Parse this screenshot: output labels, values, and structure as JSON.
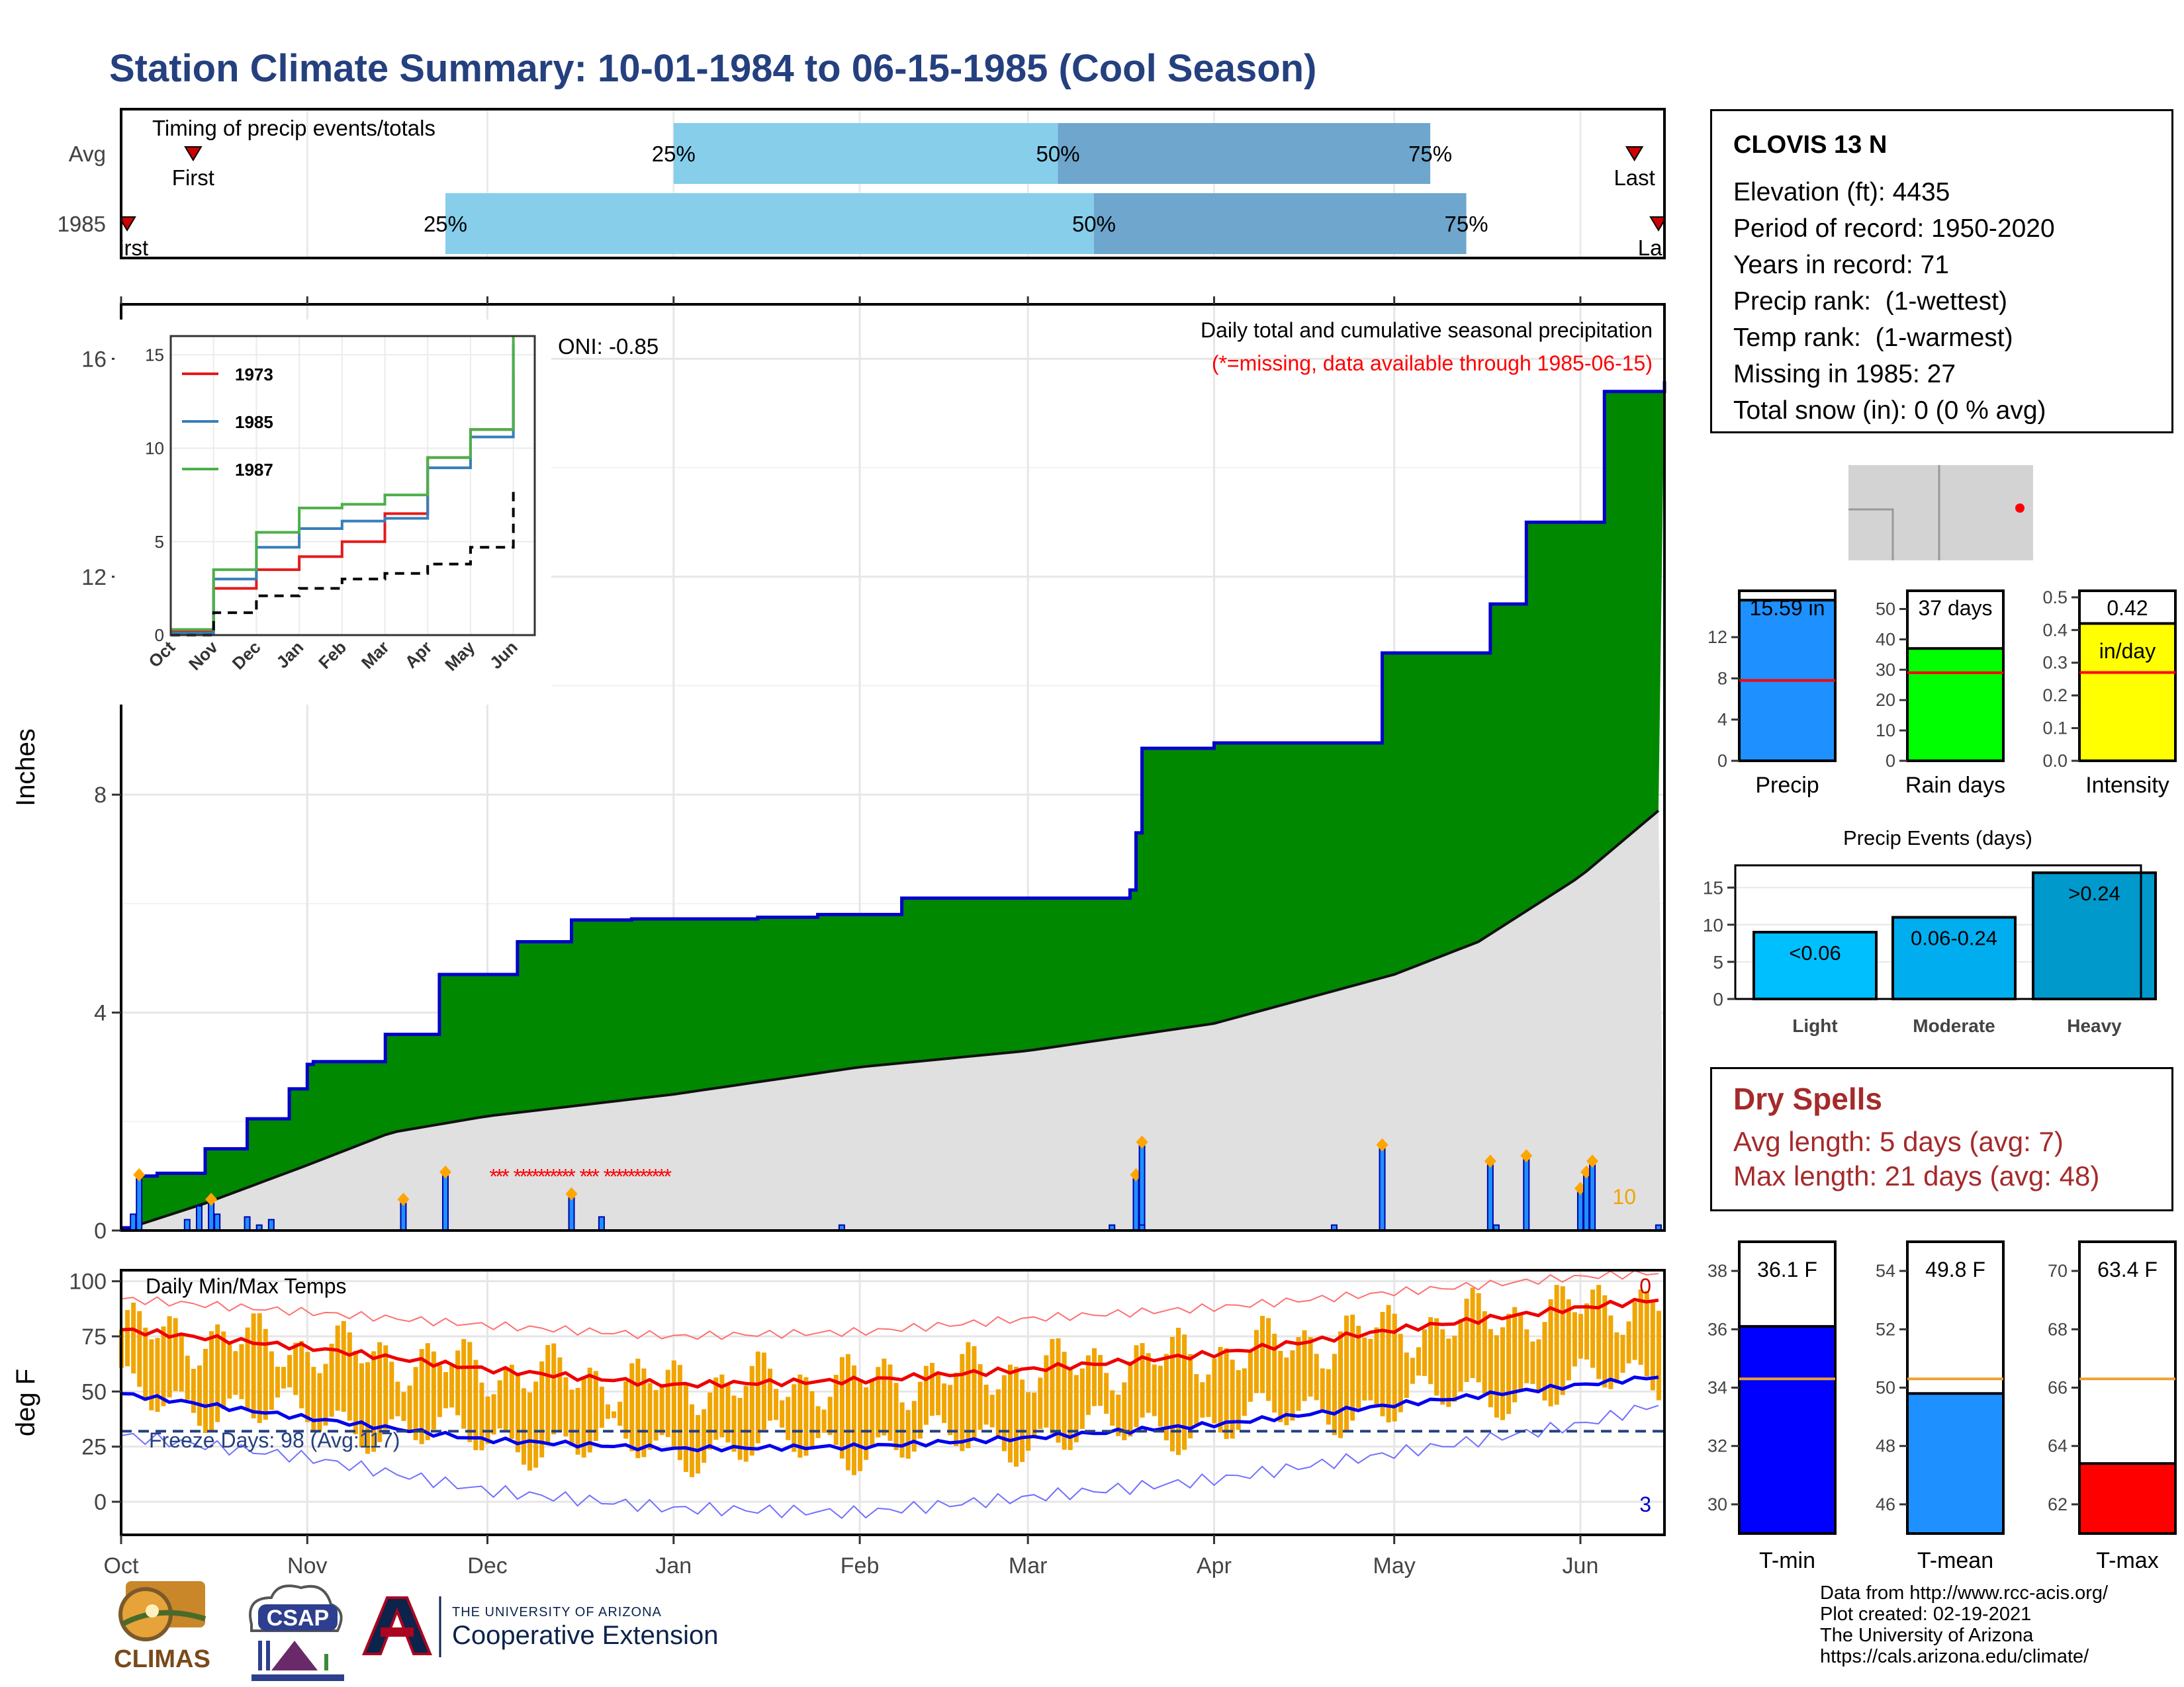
{
  "page": {
    "title": "Station Climate Summary: 10-01-1984 to 06-15-1985 (Cool Season)"
  },
  "colors": {
    "title": "#25407f",
    "wet_fill": "#008800",
    "avg_fill": "#e0e0e0",
    "cum_line": "#0000cc",
    "temp_bar": "#f0a500",
    "max_line": "#ee0000",
    "min_line": "#0000ee",
    "precip_bar": "#1e90ff",
    "raindays_bar": "#00ff00",
    "intensity_bar": "#ffff00",
    "events_bar": "#00a0e0",
    "tmin_bar": "#0000ff",
    "tmean_bar": "#1e90ff",
    "tmax_bar": "#ff0000",
    "dry_text": "#a52a2a",
    "missing": "#ff0000"
  },
  "timing": {
    "label": "Timing of precip events/totals",
    "rows": [
      {
        "name": "Avg",
        "q25": "25%",
        "q50": "50%",
        "q75": "75%",
        "first": "First",
        "last": "Last",
        "q25_date": "1985-01-01",
        "q50_date": "1985-03-06",
        "q75_date": "1985-05-07",
        "first_date": "1984-10-13",
        "last_date": "1985-06-10"
      },
      {
        "name": "1985",
        "q25": "25%",
        "q50": "50%",
        "q75": "75%",
        "first": "First",
        "last": "Last",
        "q25_date": "1984-11-24",
        "q50_date": "1985-03-12",
        "q75_date": "1985-05-13",
        "first_date": "1984-10-02",
        "last_date": "1985-06-14"
      }
    ]
  },
  "station": {
    "name": "CLOVIS 13 N",
    "elevation": "Elevation (ft): 4435",
    "period": "Period of record: 1950-2020",
    "years": "Years in record: 71",
    "precip_rank": "Precip rank:  (1-wettest)",
    "temp_rank": "Temp rank:  (1-warmest)",
    "missing": "Missing in 1985: 27",
    "snow": "Total snow (in): 0 (0 % avg)"
  },
  "main_panel": {
    "ylabel": "Inches",
    "title": "Daily total and cumulative seasonal precipitation",
    "subtitle": "(*=missing, data available through 1985-06-15)",
    "oni": "ONI: -0.85",
    "count_label": "10",
    "yticks": [
      "0",
      "4",
      "8",
      "12",
      "16"
    ],
    "months": [
      "Oct",
      "Nov",
      "Dec",
      "Jan",
      "Feb",
      "Mar",
      "Apr",
      "May",
      "Jun"
    ]
  },
  "inset": {
    "yticks": [
      "0",
      "5",
      "10",
      "15"
    ],
    "months": [
      "Oct",
      "Nov",
      "Dec",
      "Jan",
      "Feb",
      "Mar",
      "Apr",
      "May",
      "Jun"
    ],
    "legend": [
      {
        "name": "1973",
        "color": "#e41a1c"
      },
      {
        "name": "1985",
        "color": "#377eb8"
      },
      {
        "name": "1987",
        "color": "#4daf4a"
      }
    ]
  },
  "temp_panel": {
    "ylabel": "deg F",
    "label": "Daily Min/Max Temps",
    "freeze": "Freeze Days: 98 (Avg:117)",
    "count_top": "0",
    "count_bottom": "3",
    "yticks": [
      "0",
      "25",
      "50",
      "75",
      "100"
    ]
  },
  "summary_bars": {
    "precip": {
      "label": "Precip",
      "value_label": "15.59 in",
      "value": 15.59,
      "avg": 7.8,
      "ymax": 16.5,
      "yticks": [
        "0",
        "4",
        "8",
        "12"
      ]
    },
    "rain_days": {
      "label": "Rain days",
      "value_label": "37 days",
      "value": 37,
      "avg": 29,
      "ymax": 56,
      "yticks": [
        "0",
        "10",
        "20",
        "30",
        "40",
        "50"
      ]
    },
    "intensity": {
      "label": "Intensity",
      "value_label": "0.42",
      "unit_label": "in/day",
      "value": 0.42,
      "avg": 0.27,
      "ymax": 0.52,
      "yticks": [
        "0.0",
        "0.1",
        "0.2",
        "0.3",
        "0.4",
        "0.5"
      ]
    }
  },
  "events": {
    "title": "Precip Events (days)",
    "yticks": [
      "0",
      "5",
      "10",
      "15"
    ],
    "bars": [
      {
        "category": "Light",
        "label": "<0.06",
        "value": 9
      },
      {
        "category": "Moderate",
        "label": "0.06-0.24",
        "value": 11
      },
      {
        "category": "Heavy",
        "label": ">0.24",
        "value": 17
      }
    ]
  },
  "dry_spells": {
    "title": "Dry Spells",
    "avg": "Avg length: 5 days (avg: 7)",
    "max": "Max length: 21 days (avg: 48)"
  },
  "temp_bars": {
    "tmin": {
      "label": "T-min",
      "value_label": "36.1 F",
      "value": 36.1,
      "avg": 34.3,
      "ymin": 29,
      "ymax": 39,
      "yticks": [
        "30",
        "32",
        "34",
        "36",
        "38"
      ]
    },
    "tmean": {
      "label": "T-mean",
      "value_label": "49.8 F",
      "value": 49.8,
      "avg": 50.3,
      "ymin": 45,
      "ymax": 55,
      "yticks": [
        "46",
        "48",
        "50",
        "52",
        "54"
      ]
    },
    "tmax": {
      "label": "T-max",
      "value_label": "63.4 F",
      "value": 63.4,
      "avg": 66.3,
      "ymin": 61,
      "ymax": 71,
      "yticks": [
        "62",
        "64",
        "66",
        "68",
        "70"
      ]
    }
  },
  "footer": {
    "line1": "Data from http://www.rcc-acis.org/",
    "line2": "Plot created: 02-19-2021",
    "line3": "The University of Arizona",
    "line4": "https://cals.arizona.edu/climate/",
    "ua_small": "THE UNIVERSITY OF ARIZONA",
    "ua_big": "Cooperative Extension",
    "climas": "CLIMAS",
    "csap": "CSAP"
  },
  "chart_data": [
    {
      "type": "area",
      "title": "Daily total and cumulative seasonal precipitation",
      "ylabel": "Inches",
      "ylim": [
        0,
        17
      ],
      "x_range": [
        "1984-10-01",
        "1985-06-15"
      ],
      "series": [
        {
          "name": "1985",
          "x": [
            "1984-10-01",
            "1984-10-04",
            "1984-10-07",
            "1984-10-15",
            "1984-10-22",
            "1984-10-29",
            "1984-11-01",
            "1984-11-02",
            "1984-11-14",
            "1984-11-23",
            "1984-12-06",
            "1984-12-15",
            "1984-12-25",
            "1985-01-15",
            "1985-01-25",
            "1985-02-08",
            "1985-03-18",
            "1985-03-19",
            "1985-03-20",
            "1985-04-01",
            "1985-04-29",
            "1985-05-17",
            "1985-05-23",
            "1985-06-05",
            "1985-06-15"
          ],
          "y": [
            0.05,
            1.0,
            1.05,
            1.5,
            2.05,
            2.6,
            3.05,
            3.1,
            3.6,
            4.7,
            5.3,
            5.7,
            5.72,
            5.75,
            5.8,
            6.1,
            6.25,
            7.3,
            8.85,
            8.95,
            10.6,
            11.5,
            13.0,
            15.4,
            15.59
          ]
        },
        {
          "name": "Avg",
          "x": [
            "1984-10-01",
            "1984-10-15",
            "1984-11-01",
            "1984-11-15",
            "1984-12-01",
            "1985-01-01",
            "1985-02-01",
            "1985-03-01",
            "1985-04-01",
            "1985-05-01",
            "1985-05-15",
            "1985-06-01",
            "1985-06-15"
          ],
          "y": [
            0,
            0.5,
            1.2,
            1.8,
            2.1,
            2.5,
            3.0,
            3.3,
            3.8,
            4.7,
            5.3,
            6.5,
            7.8
          ]
        }
      ],
      "daily_precip": {
        "x": [
          "1984-10-03",
          "1984-10-04",
          "1984-10-12",
          "1984-10-14",
          "1984-10-16",
          "1984-10-17",
          "1984-10-22",
          "1984-10-24",
          "1984-10-26",
          "1984-11-17",
          "1984-11-24",
          "1984-12-15",
          "1984-12-20",
          "1985-01-29",
          "1985-03-15",
          "1985-03-19",
          "1985-03-20",
          "1985-03-20",
          "1985-04-21",
          "1985-04-29",
          "1985-05-17",
          "1985-05-18",
          "1985-05-23",
          "1985-06-01",
          "1985-06-02",
          "1985-06-03",
          "1985-06-14"
        ],
        "y": [
          0.3,
          0.95,
          0.2,
          0.45,
          0.5,
          0.3,
          0.25,
          0.1,
          0.2,
          0.5,
          1.0,
          0.6,
          0.25,
          0.1,
          0.1,
          0.95,
          1.55,
          0.1,
          0.1,
          1.5,
          1.2,
          0.1,
          1.3,
          0.7,
          1.0,
          1.2,
          0.1
        ]
      },
      "missing_range": [
        "1984-12-02",
        "1984-12-31"
      ]
    },
    {
      "type": "line",
      "title": "",
      "ylim": [
        0,
        16
      ],
      "series": [
        {
          "name": "1973",
          "x": [
            "Oct",
            "Nov",
            "Dec",
            "Jan",
            "Feb",
            "Mar",
            "Apr",
            "May",
            "Jun"
          ],
          "y": [
            0.2,
            2.5,
            3.5,
            4.2,
            5.0,
            6.5,
            9.5,
            11.0,
            14.0
          ]
        },
        {
          "name": "1985",
          "x": [
            "Oct",
            "Nov",
            "Dec",
            "Jan",
            "Feb",
            "Mar",
            "Apr",
            "May",
            "Jun"
          ],
          "y": [
            0.1,
            3.0,
            4.7,
            5.7,
            6.1,
            6.25,
            8.95,
            10.6,
            15.59
          ]
        },
        {
          "name": "1987",
          "x": [
            "Oct",
            "Nov",
            "Dec",
            "Jan",
            "Feb",
            "Mar",
            "Apr",
            "May",
            "Jun"
          ],
          "y": [
            0.3,
            3.5,
            5.5,
            6.8,
            7.0,
            7.5,
            9.5,
            11.0,
            16.0
          ]
        },
        {
          "name": "Avg",
          "x": [
            "Oct",
            "Nov",
            "Dec",
            "Jan",
            "Feb",
            "Mar",
            "Apr",
            "May",
            "Jun"
          ],
          "y": [
            0.0,
            1.2,
            2.1,
            2.5,
            3.0,
            3.3,
            3.8,
            4.7,
            7.8
          ]
        }
      ]
    },
    {
      "type": "bar",
      "title": "Daily Min/Max Temps",
      "ylabel": "deg F",
      "ylim": [
        -15,
        105
      ],
      "x_range": [
        "1984-10-01",
        "1985-06-15"
      ],
      "series": [
        {
          "name": "avg_max",
          "x": [
            "1984-10-01",
            "1984-11-01",
            "1984-12-01",
            "1985-01-01",
            "1985-02-01",
            "1985-03-01",
            "1985-04-01",
            "1985-05-01",
            "1985-06-01",
            "1985-06-15"
          ],
          "y": [
            78,
            70,
            60,
            53,
            55,
            60,
            67,
            78,
            88,
            92
          ]
        },
        {
          "name": "avg_min",
          "x": [
            "1984-10-01",
            "1984-11-01",
            "1984-12-01",
            "1985-01-01",
            "1985-02-01",
            "1985-03-01",
            "1985-04-01",
            "1985-05-01",
            "1985-06-01",
            "1985-06-15"
          ],
          "y": [
            49,
            38,
            28,
            24,
            25,
            29,
            35,
            44,
            53,
            57
          ]
        },
        {
          "name": "record_max",
          "x": [
            "1984-10-01",
            "1984-11-01",
            "1984-12-01",
            "1985-01-01",
            "1985-02-01",
            "1985-03-01",
            "1985-04-01",
            "1985-05-01",
            "1985-06-01",
            "1985-06-15"
          ],
          "y": [
            92,
            86,
            80,
            75,
            77,
            83,
            88,
            95,
            102,
            104
          ]
        },
        {
          "name": "record_min",
          "x": [
            "1984-10-01",
            "1984-11-01",
            "1984-12-01",
            "1985-01-01",
            "1985-02-01",
            "1985-03-01",
            "1985-04-01",
            "1985-05-01",
            "1985-06-01",
            "1985-06-15"
          ],
          "y": [
            30,
            20,
            5,
            -3,
            -5,
            2,
            10,
            22,
            35,
            45
          ]
        }
      ],
      "freeze_line": 32
    },
    {
      "type": "bar",
      "categories": [
        "Precip",
        "Rain days",
        "Intensity"
      ],
      "values": [
        15.59,
        37,
        0.42
      ],
      "averages": [
        7.8,
        29,
        0.27
      ]
    },
    {
      "type": "bar",
      "title": "Precip Events (days)",
      "categories": [
        "Light",
        "Moderate",
        "Heavy"
      ],
      "values": [
        9,
        11,
        17
      ],
      "ylim": [
        0,
        18
      ]
    },
    {
      "type": "bar",
      "categories": [
        "T-min",
        "T-mean",
        "T-max"
      ],
      "values": [
        36.1,
        49.8,
        63.4
      ],
      "averages": [
        34.3,
        50.3,
        66.3
      ]
    }
  ]
}
